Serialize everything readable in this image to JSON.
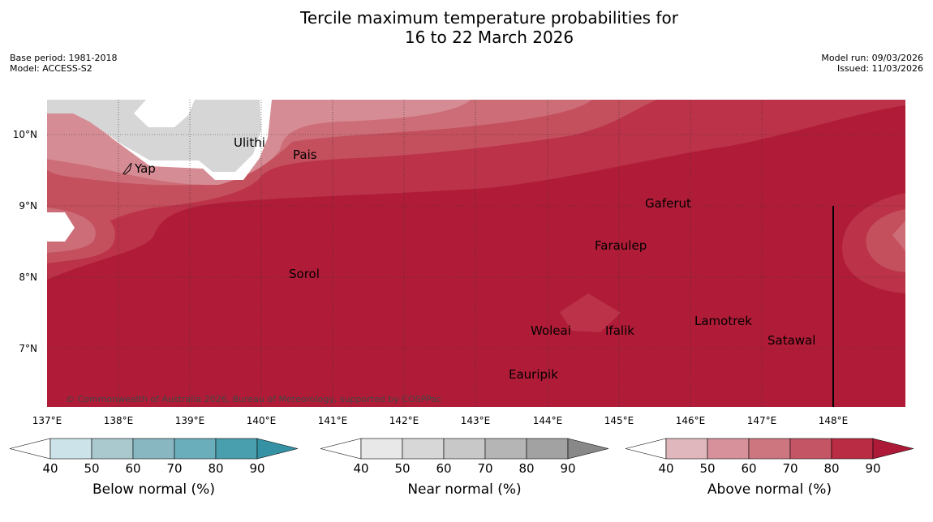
{
  "title_line1": "Tercile maximum temperature probabilities for",
  "title_line2": "16 to 22 March 2026",
  "meta": {
    "base_period": "Base period: 1981-2018",
    "model": "Model: ACCESS-S2",
    "model_run": "Model run: 09/03/2026",
    "issued": "Issued: 11/03/2026"
  },
  "latitudes": [
    "10°N",
    "9°N",
    "8°N",
    "7°N"
  ],
  "longitudes": [
    "137°E",
    "138°E",
    "139°E",
    "140°E",
    "141°E",
    "142°E",
    "143°E",
    "144°E",
    "145°E",
    "146°E",
    "147°E",
    "148°E"
  ],
  "places": [
    "Ulithi",
    "Pais",
    "Yap",
    "Gaferut",
    "Faraulep",
    "Sorol",
    "Lamotrek",
    "Woleai",
    "Ifalik",
    "Satawal",
    "Eauripik"
  ],
  "copyright": "© Commonwealth of Australia 2026, Bureau of Meteorology, supported by COSPPac",
  "colorbars": [
    {
      "title": "Below normal (%)",
      "ticks": [
        "40",
        "50",
        "60",
        "70",
        "80",
        "90"
      ],
      "colors": [
        "#cce3e9",
        "#a9c9cf",
        "#88b6c1",
        "#6aaebc",
        "#4a9fae",
        "#3592a4"
      ]
    },
    {
      "title": "Near normal (%)",
      "ticks": [
        "40",
        "50",
        "60",
        "70",
        "80",
        "90"
      ],
      "colors": [
        "#e8e8e8",
        "#d7d7d7",
        "#c8c8c8",
        "#b5b5b5",
        "#a2a2a2",
        "#888888"
      ]
    },
    {
      "title": "Above normal (%)",
      "ticks": [
        "40",
        "50",
        "60",
        "70",
        "80",
        "90"
      ],
      "colors": [
        "#e0b7bc",
        "#d6919b",
        "#cd7680",
        "#c45564",
        "#b92c44",
        "#ad1a38"
      ]
    }
  ],
  "colors": {
    "above_90": "#b01c37",
    "above_80": "#bb3249",
    "above_70": "#c44f5d",
    "above_60": "#cc6d77",
    "above_50": "#d68c94",
    "near_70": "#d6d6d6"
  }
}
